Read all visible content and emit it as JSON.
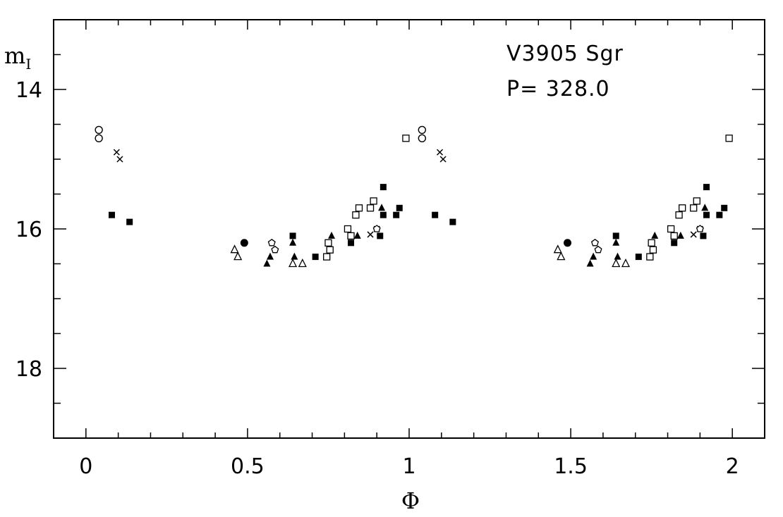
{
  "chart_data": {
    "type": "scatter",
    "title": "",
    "xlabel": "Φ",
    "ylabel_main": "m",
    "ylabel_sub": "I",
    "xlim": [
      -0.1,
      2.1
    ],
    "ylim": [
      19.0,
      13.0
    ],
    "y_inverted": true,
    "grid": false,
    "x_major_ticks": [
      0,
      0.5,
      1,
      1.5,
      2
    ],
    "x_tick_labels": [
      "0",
      "0.5",
      "1",
      "1.5",
      "2"
    ],
    "x_minor_step": 0.1,
    "y_major_ticks": [
      14,
      16,
      18
    ],
    "y_tick_labels": [
      "14",
      "16",
      "18"
    ],
    "y_minor_step": 0.5,
    "annotations": [
      {
        "text": "V3905 Sgr",
        "x": 1.29,
        "y": 13.52
      },
      {
        "text": "P= 328.0",
        "x": 1.29,
        "y": 14.0
      }
    ],
    "series": [
      {
        "marker": "open-circle",
        "points": [
          [
            0.04,
            14.58
          ],
          [
            0.04,
            14.7
          ],
          [
            1.04,
            14.58
          ],
          [
            1.04,
            14.7
          ]
        ]
      },
      {
        "marker": "cross",
        "points": [
          [
            0.095,
            14.9
          ],
          [
            0.105,
            15.0
          ],
          [
            1.095,
            14.9
          ],
          [
            1.105,
            15.0
          ],
          [
            0.88,
            16.08
          ],
          [
            0.9,
            16.0
          ],
          [
            1.88,
            16.08
          ],
          [
            1.9,
            16.0
          ]
        ]
      },
      {
        "marker": "filled-square",
        "points": [
          [
            0.08,
            15.8
          ],
          [
            0.135,
            15.9
          ],
          [
            0.64,
            16.1
          ],
          [
            0.71,
            16.4
          ],
          [
            0.82,
            16.2
          ],
          [
            0.92,
            15.4
          ],
          [
            0.96,
            15.8
          ],
          [
            0.97,
            15.7
          ],
          [
            0.91,
            16.1
          ],
          [
            0.92,
            15.8
          ],
          [
            1.08,
            15.8
          ],
          [
            1.135,
            15.9
          ],
          [
            1.64,
            16.1
          ],
          [
            1.71,
            16.4
          ],
          [
            1.82,
            16.2
          ],
          [
            1.92,
            15.4
          ],
          [
            1.96,
            15.8
          ],
          [
            1.975,
            15.7
          ],
          [
            1.91,
            16.1
          ],
          [
            1.92,
            15.8
          ]
        ]
      },
      {
        "marker": "filled-triangle",
        "points": [
          [
            0.56,
            16.5
          ],
          [
            0.57,
            16.4
          ],
          [
            0.64,
            16.2
          ],
          [
            0.645,
            16.4
          ],
          [
            0.76,
            16.1
          ],
          [
            0.84,
            16.1
          ],
          [
            0.915,
            15.7
          ],
          [
            1.56,
            16.5
          ],
          [
            1.57,
            16.4
          ],
          [
            1.64,
            16.2
          ],
          [
            1.645,
            16.4
          ],
          [
            1.76,
            16.1
          ],
          [
            1.84,
            16.1
          ],
          [
            1.915,
            15.7
          ]
        ]
      },
      {
        "marker": "open-triangle",
        "points": [
          [
            0.46,
            16.3
          ],
          [
            0.47,
            16.4
          ],
          [
            0.64,
            16.5
          ],
          [
            0.67,
            16.5
          ],
          [
            1.46,
            16.3
          ],
          [
            1.47,
            16.4
          ],
          [
            1.64,
            16.5
          ],
          [
            1.67,
            16.5
          ]
        ]
      },
      {
        "marker": "open-square",
        "points": [
          [
            0.745,
            16.4
          ],
          [
            0.75,
            16.2
          ],
          [
            0.755,
            16.3
          ],
          [
            0.81,
            16.0
          ],
          [
            0.82,
            16.1
          ],
          [
            0.835,
            15.8
          ],
          [
            0.845,
            15.7
          ],
          [
            0.88,
            15.7
          ],
          [
            0.89,
            15.6
          ],
          [
            0.99,
            14.7
          ],
          [
            1.745,
            16.4
          ],
          [
            1.75,
            16.2
          ],
          [
            1.755,
            16.3
          ],
          [
            1.81,
            16.0
          ],
          [
            1.82,
            16.1
          ],
          [
            1.835,
            15.8
          ],
          [
            1.845,
            15.7
          ],
          [
            1.88,
            15.7
          ],
          [
            1.89,
            15.6
          ],
          [
            1.99,
            14.7
          ]
        ]
      },
      {
        "marker": "open-pentagon",
        "points": [
          [
            0.575,
            16.2
          ],
          [
            0.585,
            16.3
          ],
          [
            0.9,
            16.0
          ],
          [
            1.575,
            16.2
          ],
          [
            1.585,
            16.3
          ],
          [
            1.9,
            16.0
          ]
        ]
      },
      {
        "marker": "filled-circle",
        "points": [
          [
            0.49,
            16.2
          ],
          [
            1.49,
            16.2
          ]
        ]
      }
    ]
  }
}
